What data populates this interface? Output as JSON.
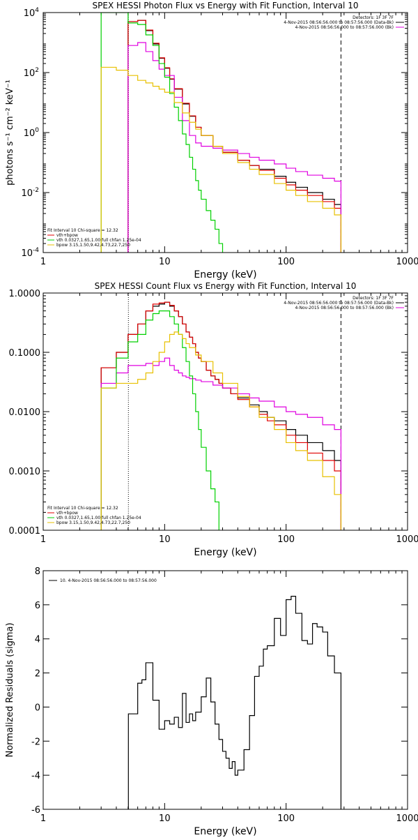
{
  "colors": {
    "data": "#000000",
    "fit_total": "#e00000",
    "vth": "#00d000",
    "bpow": "#e8c000",
    "background": "#e000e0"
  },
  "chart_data": [
    {
      "type": "line",
      "title": "SPEX HESSI Photon Flux vs Energy with Fit Function, Interval 10",
      "xlabel": "Energy (keV)",
      "ylabel": "photons s⁻¹ cm⁻² keV⁻¹",
      "xscale": "log",
      "yscale": "log",
      "xlim": [
        1,
        1000
      ],
      "ylim": [
        0.0001,
        10000
      ],
      "xticks": [
        {
          "v": 1,
          "label": "1"
        },
        {
          "v": 10,
          "label": "10"
        },
        {
          "v": 100,
          "label": "100"
        },
        {
          "v": 1000,
          "label": "1000"
        }
      ],
      "yticks": [
        {
          "v": 0.0001,
          "base": "10",
          "exp": "-4"
        },
        {
          "v": 0.01,
          "base": "10",
          "exp": "-2"
        },
        {
          "v": 1,
          "base": "10",
          "exp": "0"
        },
        {
          "v": 100,
          "base": "10",
          "exp": "2"
        },
        {
          "v": 10000,
          "base": "10",
          "exp": "4"
        }
      ],
      "vlines": [
        {
          "x": 5.03,
          "style": "dotted"
        },
        {
          "x": 283,
          "style": "dashed"
        }
      ],
      "legend_top": [
        "Detectors: 1F 3F 7F",
        "4-Nov-2015 08:56:56.000 to 08:57:56.000 (Data-Bk)",
        "4-Nov-2015 08:56:56.000 to 08:57:56.000 (Bk)"
      ],
      "legend_bottom": [
        "Fit Interval 10    Chi-square = 12.32",
        "vth+bpow",
        "vth 0.0327,1.65,1.00  full chfan 1.25e-04",
        "bpow 3.15,1.50,9.42,4.73,22.7,250"
      ],
      "series": [
        {
          "name": "Data-Bk",
          "color_key": "data",
          "x": [
            5,
            6,
            7,
            8,
            9,
            10,
            11,
            12,
            14,
            16,
            18,
            20,
            25,
            30,
            40,
            50,
            60,
            80,
            100,
            120,
            150,
            200,
            250,
            283
          ],
          "y": [
            5000,
            5500,
            2500,
            900,
            300,
            140,
            60,
            28,
            9,
            3.5,
            1.5,
            0.8,
            0.35,
            0.22,
            0.12,
            0.08,
            0.06,
            0.035,
            0.022,
            0.015,
            0.01,
            0.006,
            0.004,
            0.002
          ]
        },
        {
          "name": "vth+bpow",
          "color_key": "fit_total",
          "x": [
            5,
            6,
            7,
            8,
            9,
            10,
            11,
            12,
            14,
            16,
            18,
            20,
            25,
            30,
            40,
            50,
            60,
            80,
            100,
            120,
            150,
            200,
            250,
            283
          ],
          "y": [
            5000,
            5500,
            2600,
            950,
            310,
            145,
            62,
            29,
            9.5,
            3.6,
            1.5,
            0.8,
            0.35,
            0.22,
            0.12,
            0.08,
            0.055,
            0.03,
            0.018,
            0.012,
            0.008,
            0.005,
            0.003,
            0.0022
          ]
        },
        {
          "name": "Bk",
          "color_key": "background",
          "x": [
            5,
            6,
            7,
            8,
            9,
            10,
            12,
            14,
            16,
            18,
            20,
            25,
            30,
            40,
            50,
            60,
            80,
            100,
            120,
            150,
            200,
            250,
            283
          ],
          "y": [
            800,
            1000,
            500,
            250,
            130,
            80,
            15,
            2.5,
            0.8,
            0.45,
            0.35,
            0.3,
            0.26,
            0.2,
            0.15,
            0.12,
            0.09,
            0.065,
            0.05,
            0.038,
            0.03,
            0.024,
            0.02
          ]
        },
        {
          "name": "vth",
          "color_key": "vth",
          "x": [
            3,
            4,
            5,
            6,
            7,
            8,
            9,
            10,
            11,
            12,
            13,
            14,
            15,
            16,
            17,
            18,
            19,
            20,
            22,
            24,
            26,
            28,
            30
          ],
          "y": [
            10000,
            10000,
            4500,
            4000,
            1800,
            800,
            200,
            70,
            20,
            7,
            2.5,
            0.9,
            0.4,
            0.15,
            0.06,
            0.025,
            0.012,
            0.006,
            0.0025,
            0.0012,
            0.0006,
            0.0002,
            0.0001
          ]
        },
        {
          "name": "bpow",
          "color_key": "bpow",
          "x": [
            3,
            4,
            5,
            6,
            7,
            8,
            9,
            10,
            12,
            14,
            16,
            18,
            20,
            25,
            30,
            40,
            50,
            60,
            80,
            100,
            120,
            150,
            200,
            250,
            283
          ],
          "y": [
            150,
            120,
            80,
            55,
            45,
            35,
            28,
            22,
            10,
            4.5,
            2.2,
            1.3,
            0.8,
            0.35,
            0.2,
            0.1,
            0.06,
            0.04,
            0.02,
            0.012,
            0.008,
            0.005,
            0.003,
            0.0018,
            0.0005
          ]
        }
      ]
    },
    {
      "type": "line",
      "title": "SPEX HESSI Count Flux vs Energy with Fit Function, Interval 10",
      "xlabel": "Energy (keV)",
      "ylabel": "",
      "xscale": "log",
      "yscale": "log",
      "xlim": [
        1,
        1000
      ],
      "ylim": [
        0.0001,
        1
      ],
      "xticks": [
        {
          "v": 1,
          "label": "1"
        },
        {
          "v": 10,
          "label": "10"
        },
        {
          "v": 100,
          "label": "100"
        },
        {
          "v": 1000,
          "label": "1000"
        }
      ],
      "yticks": [
        {
          "v": 0.0001,
          "label": "0.0001"
        },
        {
          "v": 0.001,
          "label": "0.0010"
        },
        {
          "v": 0.01,
          "label": "0.0100"
        },
        {
          "v": 0.1,
          "label": "0.1000"
        },
        {
          "v": 1,
          "label": "1.0000"
        }
      ],
      "vlines": [
        {
          "x": 5.03,
          "style": "dotted"
        },
        {
          "x": 283,
          "style": "dashed"
        }
      ],
      "legend_top": [
        "Detectors: 1F 3F 7F",
        "4-Nov-2015 08:56:56.000 to 08:57:56.000 (Data-Bk)",
        "4-Nov-2015 08:56:56.000 to 08:57:56.000 (Bk)"
      ],
      "legend_bottom": [
        "Fit Interval 10    Chi-square = 12.32",
        "vth+bpow",
        "vth 0.0327,1.65,1.00  full chfan 1.25e-04",
        "bpow 3.15,1.50,9.42,4.73,22.7,250"
      ],
      "series": [
        {
          "name": "Data-Bk",
          "color_key": "data",
          "x": [
            3,
            4,
            5,
            6,
            7,
            8,
            9,
            10,
            11,
            12,
            13,
            14,
            15,
            16,
            17,
            18,
            19,
            20,
            22,
            24,
            26,
            28,
            30,
            35,
            40,
            50,
            60,
            70,
            80,
            100,
            120,
            150,
            200,
            250,
            283
          ],
          "y": [
            0.055,
            0.1,
            0.2,
            0.3,
            0.5,
            0.6,
            0.65,
            0.7,
            0.6,
            0.5,
            0.4,
            0.3,
            0.22,
            0.18,
            0.14,
            0.1,
            0.08,
            0.07,
            0.05,
            0.04,
            0.035,
            0.03,
            0.025,
            0.02,
            0.017,
            0.013,
            0.01,
            0.008,
            0.007,
            0.005,
            0.004,
            0.003,
            0.0022,
            0.0015,
            0.0008
          ]
        },
        {
          "name": "vth+bpow",
          "color_key": "fit_total",
          "x": [
            3,
            4,
            5,
            6,
            7,
            8,
            9,
            10,
            11,
            12,
            13,
            14,
            15,
            16,
            17,
            18,
            19,
            20,
            22,
            24,
            26,
            28,
            30,
            35,
            40,
            50,
            60,
            70,
            80,
            100,
            120,
            150,
            200,
            250,
            283
          ],
          "y": [
            0.055,
            0.1,
            0.2,
            0.3,
            0.5,
            0.65,
            0.68,
            0.7,
            0.62,
            0.5,
            0.4,
            0.3,
            0.22,
            0.18,
            0.14,
            0.1,
            0.08,
            0.07,
            0.05,
            0.04,
            0.035,
            0.03,
            0.025,
            0.02,
            0.016,
            0.012,
            0.009,
            0.007,
            0.006,
            0.004,
            0.003,
            0.002,
            0.0015,
            0.001,
            0.0006
          ]
        },
        {
          "name": "Bk",
          "color_key": "background",
          "x": [
            3,
            4,
            5,
            6,
            7,
            8,
            9,
            10,
            11,
            12,
            13,
            14,
            15,
            16,
            18,
            20,
            25,
            30,
            40,
            50,
            60,
            80,
            100,
            120,
            150,
            200,
            250,
            283
          ],
          "y": [
            0.03,
            0.045,
            0.06,
            0.06,
            0.065,
            0.06,
            0.07,
            0.08,
            0.06,
            0.05,
            0.045,
            0.04,
            0.038,
            0.036,
            0.034,
            0.032,
            0.028,
            0.025,
            0.02,
            0.017,
            0.015,
            0.012,
            0.01,
            0.009,
            0.008,
            0.006,
            0.005,
            0.0025
          ]
        },
        {
          "name": "vth",
          "color_key": "vth",
          "x": [
            3,
            4,
            5,
            6,
            7,
            8,
            9,
            10,
            11,
            12,
            13,
            14,
            15,
            16,
            17,
            18,
            19,
            20,
            22,
            24,
            26,
            28
          ],
          "y": [
            0.025,
            0.08,
            0.15,
            0.2,
            0.35,
            0.45,
            0.5,
            0.5,
            0.4,
            0.3,
            0.2,
            0.12,
            0.07,
            0.04,
            0.02,
            0.01,
            0.005,
            0.0025,
            0.001,
            0.0005,
            0.0003,
            0.0001
          ]
        },
        {
          "name": "bpow",
          "color_key": "bpow",
          "x": [
            3,
            4,
            5,
            6,
            7,
            8,
            9,
            10,
            11,
            12,
            13,
            14,
            15,
            16,
            18,
            20,
            25,
            30,
            40,
            50,
            60,
            80,
            100,
            120,
            150,
            200,
            250,
            283
          ],
          "y": [
            0.025,
            0.03,
            0.03,
            0.035,
            0.045,
            0.07,
            0.1,
            0.15,
            0.2,
            0.22,
            0.2,
            0.17,
            0.14,
            0.12,
            0.09,
            0.07,
            0.045,
            0.03,
            0.018,
            0.012,
            0.008,
            0.005,
            0.003,
            0.0022,
            0.0015,
            0.0008,
            0.0004,
            0.0002
          ]
        }
      ]
    },
    {
      "type": "line",
      "title": "",
      "xlabel": "Energy (keV)",
      "ylabel": "Normalized Residuals (sigma)",
      "xscale": "log",
      "yscale": "linear",
      "xlim": [
        1,
        1000
      ],
      "ylim": [
        -6,
        8
      ],
      "xticks": [
        {
          "v": 1,
          "label": "1"
        },
        {
          "v": 10,
          "label": "10"
        },
        {
          "v": 100,
          "label": "100"
        },
        {
          "v": 1000,
          "label": "1000"
        }
      ],
      "yticks": [
        {
          "v": -6,
          "label": "-6"
        },
        {
          "v": -4,
          "label": "-4"
        },
        {
          "v": -2,
          "label": "-2"
        },
        {
          "v": 0,
          "label": "0"
        },
        {
          "v": 2,
          "label": "2"
        },
        {
          "v": 4,
          "label": "4"
        },
        {
          "v": 6,
          "label": "6"
        },
        {
          "v": 8,
          "label": "8"
        }
      ],
      "legend_top": [
        "10.  4-Nov-2015 08:56:56.000 to 08:57:56.000"
      ],
      "series": [
        {
          "name": "10.  4-Nov-2015 08:56:56.000 to 08:57:56.000",
          "color_key": "data",
          "x": [
            5.03,
            6,
            6.5,
            7,
            8,
            9,
            10,
            11,
            12,
            13,
            14,
            15,
            16,
            17,
            18,
            20,
            22,
            24,
            26,
            28,
            30,
            32,
            34,
            36,
            38,
            40,
            45,
            50,
            55,
            60,
            65,
            70,
            80,
            90,
            100,
            110,
            120,
            135,
            150,
            165,
            180,
            200,
            220,
            250,
            283
          ],
          "y": [
            -0.4,
            1.4,
            1.6,
            2.6,
            0.4,
            -1.3,
            -0.8,
            -1.0,
            -0.6,
            -1.2,
            0.8,
            -0.9,
            -0.4,
            -0.8,
            -0.3,
            0.6,
            1.7,
            0.3,
            -1.0,
            -1.9,
            -2.6,
            -3.0,
            -3.6,
            -3.2,
            -4.0,
            -3.7,
            -2.5,
            -0.5,
            1.8,
            2.4,
            3.4,
            3.6,
            5.2,
            4.2,
            6.3,
            6.5,
            5.5,
            3.9,
            3.7,
            4.9,
            4.7,
            4.4,
            3.0,
            2.0,
            -6
          ]
        }
      ]
    }
  ]
}
